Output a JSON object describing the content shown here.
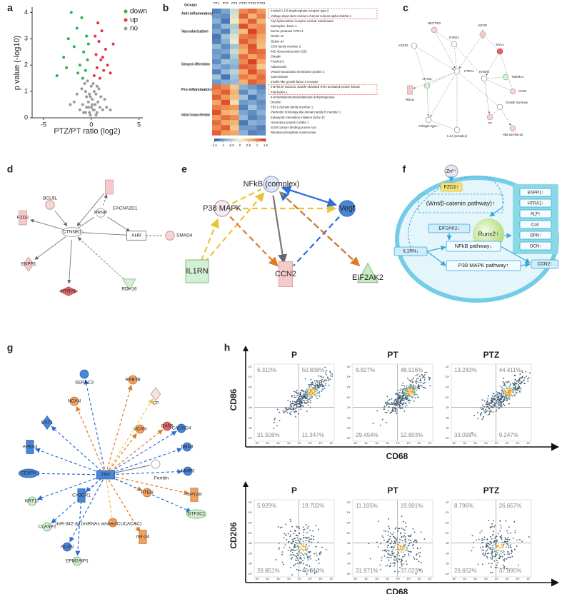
{
  "panel_labels": [
    "a",
    "b",
    "c",
    "d",
    "e",
    "f",
    "g",
    "h"
  ],
  "volcano": {
    "xlabel": "PTZ/PT ratio (log2)",
    "ylabel": "p value (-log10)",
    "xlim": [
      -6.2,
      5.4
    ],
    "ylim": [
      0,
      4.2
    ],
    "xticks": [
      -5,
      0,
      5
    ],
    "yticks": [
      0,
      1,
      2,
      3,
      4
    ],
    "series": [
      {
        "name": "down",
        "color": "#2db34a",
        "x": [
          -3.6,
          -2.9,
          -2.4,
          -2.1,
          -1.8,
          -1.5,
          -1.2,
          -1.0,
          -0.8,
          -0.6,
          -0.5,
          -0.4,
          -1.4,
          -0.9,
          -2.6,
          -0.3
        ],
        "y": [
          1.6,
          2.3,
          3.0,
          4.0,
          2.7,
          3.4,
          2.0,
          3.8,
          2.5,
          1.8,
          3.1,
          2.2,
          1.7,
          1.5,
          1.9,
          2.8
        ]
      },
      {
        "name": "up",
        "color": "#e8303a",
        "x": [
          0.3,
          0.5,
          0.6,
          0.8,
          1.0,
          1.1,
          1.3,
          1.5,
          1.7,
          2.0,
          2.3,
          0.4,
          0.9,
          1.2,
          0.7
        ],
        "y": [
          1.6,
          2.4,
          1.9,
          2.9,
          2.2,
          3.3,
          1.8,
          2.6,
          2.0,
          1.7,
          2.8,
          3.1,
          1.5,
          2.3,
          3.6
        ]
      },
      {
        "name": "no",
        "color": "#9a9a9a",
        "x": [
          -1.8,
          -1.5,
          -1.2,
          -1.0,
          -0.9,
          -0.7,
          -0.6,
          -0.5,
          -0.4,
          -0.3,
          -0.2,
          -0.1,
          0,
          0.1,
          0.2,
          0.3,
          0.4,
          0.5,
          0.6,
          0.7,
          0.8,
          0.9,
          1.0,
          1.2,
          1.4,
          1.6,
          -0.8,
          -0.3,
          0.2,
          0.5,
          -0.5,
          0.1,
          -0.2,
          0.3,
          -0.1,
          0.0,
          0.6,
          -0.6,
          2.0,
          -2.2
        ],
        "y": [
          0.6,
          0.9,
          0.3,
          1.1,
          0.5,
          1.3,
          0.2,
          0.8,
          1.4,
          0.4,
          0.9,
          0.1,
          1.2,
          0.7,
          0.3,
          1.0,
          0.5,
          0.9,
          0.2,
          0.6,
          1.1,
          0.4,
          0.8,
          0.3,
          0.7,
          0.4,
          0.2,
          0.6,
          1.3,
          0.1,
          0.4,
          0.5,
          0.2,
          0.3,
          0.8,
          0.4,
          1.2,
          1.0,
          0.3,
          0.5
        ]
      }
    ]
  },
  "heatmap": {
    "columns_title": "Groups",
    "columns": [
      "PT1",
      "PT2",
      "PT3",
      "PTZ1",
      "PTZ2",
      "PTZ3"
    ],
    "groups": [
      {
        "label": "Anti-inflammatory",
        "rows": [
          {
            "name": "Inositol 1,4,5-trisphosphate receptor type 2",
            "values": [
              -1.2,
              -0.9,
              -0.3,
              0.9,
              1.1,
              0.8
            ]
          },
          {
            "name": "Voltage-dependent calcium channel subunit alpha-2/delta-1",
            "values": [
              -1.0,
              -1.1,
              -0.2,
              1.2,
              0.6,
              1.0
            ]
          }
        ]
      },
      {
        "label": "Vascularization",
        "rows": [
          {
            "name": "Aryl hydrocarbon receptor nuclear translocator",
            "values": [
              -0.8,
              -1.3,
              0.1,
              0.7,
              1.2,
              0.6
            ]
          },
          {
            "name": "Syntrophin, basic 1",
            "values": [
              -1.1,
              -0.7,
              -0.5,
              1.3,
              0.8,
              0.9
            ]
          },
          {
            "name": "Serine protease HTRA1",
            "values": [
              -0.9,
              -1.2,
              -0.4,
              0.5,
              1.4,
              0.9
            ]
          },
          {
            "name": "Globin c2",
            "values": [
              -1.3,
              -0.6,
              -0.2,
              1.0,
              1.1,
              0.7
            ]
          },
          {
            "name": "Globin a4",
            "values": [
              -1.2,
              -0.8,
              -0.1,
              1.2,
              0.9,
              0.6
            ]
          }
        ]
      },
      {
        "label": "Osteogenic differentiation",
        "rows": [
          {
            "name": "CCN family member 2",
            "values": [
              -0.7,
              -1.1,
              -0.6,
              0.8,
              1.3,
              0.5
            ]
          },
          {
            "name": "40S ribosomal protein S29",
            "values": [
              -1.0,
              -0.9,
              -0.3,
              0.6,
              1.2,
              1.1
            ]
          },
          {
            "name": "Claudin",
            "values": [
              -0.9,
              -1.2,
              -0.5,
              1.1,
              0.7,
              1.0
            ]
          },
          {
            "name": "Frizzled-2",
            "values": [
              -1.1,
              -0.6,
              -0.7,
              0.9,
              1.4,
              0.7
            ]
          },
          {
            "name": "Adiponectin",
            "values": [
              -0.8,
              -1.0,
              -0.8,
              1.2,
              1.1,
              0.4
            ]
          },
          {
            "name": "Vesicle-associated membrane protein 3",
            "values": [
              -1.2,
              -0.7,
              -0.4,
              0.7,
              1.3,
              0.9
            ]
          },
          {
            "name": "Carnosinase",
            "values": [
              -0.6,
              -1.3,
              -0.6,
              1.0,
              0.8,
              1.1
            ]
          },
          {
            "name": "Insulin-like growth factor 2 receptor",
            "values": [
              -1.0,
              -0.8,
              -0.7,
              0.6,
              1.2,
              1.0
            ]
          }
        ]
      },
      {
        "label": "Pro-inflammatory",
        "rows": [
          {
            "name": "Interferon-induced, double-stranded RNA-activated protein kinase",
            "values": [
              1.1,
              0.9,
              0.4,
              -0.8,
              -1.0,
              -1.2
            ]
          },
          {
            "name": "Interleukin-1",
            "values": [
              0.9,
              1.2,
              0.6,
              -1.1,
              -0.7,
              -1.0
            ]
          }
        ]
      },
      {
        "label": "Inhibition of osteogenic differentiation",
        "rows": [
          {
            "name": "4-trimethylaminobutyraldehyde dehydrogenase",
            "values": [
              1.2,
              0.8,
              0.5,
              -0.6,
              -1.3,
              -0.9
            ]
          },
          {
            "name": "Desmin",
            "values": [
              0.7,
              1.3,
              0.2,
              -1.0,
              -0.9,
              -1.1
            ]
          },
          {
            "name": "TBC1 domain family member 1",
            "values": [
              1.0,
              0.9,
              0.8,
              -1.2,
              -0.6,
              -1.0
            ]
          },
          {
            "name": "Pleckstrin homology-like domain family B member 1",
            "values": [
              1.3,
              0.6,
              0.5,
              -0.9,
              -1.1,
              -0.8
            ]
          },
          {
            "name": "Eukaryotic translation initiation factor 4C",
            "values": [
              0.8,
              1.1,
              0.9,
              -0.7,
              -1.2,
              -1.0
            ]
          },
          {
            "name": "Homeobox protein cut-like 1",
            "values": [
              1.1,
              0.7,
              0.6,
              -1.3,
              -0.8,
              -0.9
            ]
          },
          {
            "name": "S100 calcium binding protein A16",
            "values": [
              0.9,
              1.2,
              0.4,
              -1.0,
              -1.0,
              -1.2
            ]
          },
          {
            "name": "Ribulose-phosphate 3-epimerase",
            "values": [
              1.2,
              0.8,
              0.7,
              -0.8,
              -1.2,
              -1.1
            ]
          }
        ]
      }
    ],
    "colorbar_ticks": [
      -1.5,
      -1,
      -0.5,
      0,
      0.5,
      1,
      1.5
    ]
  },
  "network_c": {
    "nodes": [
      "NECTIN3",
      "IGF2R",
      "DYRK2",
      "ASGR1",
      "MYL4",
      "HTRA1",
      "ACTN1",
      "CCN2",
      "FBLN1",
      "Growth hormone",
      "Collagen type I",
      "Hba-a1/Hba-a2",
      "IL12 (complex)",
      "CP",
      "RAB7B",
      "TMEM14"
    ]
  },
  "network_d": {
    "nodes": [
      "BCL9L",
      "CACNA2D1",
      "PRNP",
      "FZD2",
      "CTNNB1",
      "AHR",
      "SMAD4",
      "ENPP1",
      "HTRA1",
      "RDH16"
    ]
  },
  "network_e": {
    "nodes": [
      "NFkB (complex)",
      "P38 MAPK",
      "Vegf",
      "IL1RN",
      "CCN2",
      "EIF2AK2"
    ]
  },
  "diagram_f": {
    "zinc": "Zn²⁺",
    "fzd2": "FZD2↑",
    "wnt": "(Wnt/β-catenin pathway)↑",
    "eif2ak2": "EIF2AK2↓",
    "runx2": "Runx2↑",
    "nfkb": "NFkB pathway↓",
    "il1rn": "IL1RN↓",
    "p38": "P38 MAPK pathway↑",
    "ccn2": "CCN2↑",
    "markers": [
      "ENPP1↑",
      "HTRA1↑",
      "ALP↑",
      "Col↑",
      "OPN↑",
      "OCN↑"
    ]
  },
  "network_g": {
    "nodes": [
      "TNF",
      "SERAC3",
      "NCAN",
      "RAB7B",
      "CP",
      "GAS6",
      "EXT1",
      "VCAN",
      "CACNG4",
      "APBA3",
      "DBN3",
      "CEBPA",
      "MMP3",
      "KRT17",
      "PTEN",
      "NPY2R",
      "CLASP2",
      "CX3CR1",
      "GTF3C1",
      "ACAN",
      "miR-342-3p (miRNAs w/seed CUCACAC)",
      "mir-24",
      "Ferritin",
      "EPM2AIP1"
    ]
  },
  "flow": {
    "ticks": [
      "10⁰",
      "10¹",
      "10²",
      "10³",
      "10⁴",
      "10⁵",
      "10⁶",
      "10⁷"
    ],
    "rows": [
      {
        "y_label": "CD86",
        "x_label": "CD68",
        "plots": [
          {
            "title": "P",
            "quadrants": [
              "6.310%",
              "50.838%",
              "31.506%",
              "11.347%"
            ]
          },
          {
            "title": "PT",
            "quadrants": [
              "8.827%",
              "48.916%",
              "29.454%",
              "12.803%"
            ]
          },
          {
            "title": "PTZ",
            "quadrants": [
              "13.243%",
              "44.411%",
              "33.099%",
              "9.247%"
            ]
          }
        ]
      },
      {
        "y_label": "CD206",
        "x_label": "CD68",
        "plots": [
          {
            "title": "P",
            "quadrants": [
              "5.929%",
              "19.702%",
              "28.851%",
              "45.518%"
            ]
          },
          {
            "title": "PT",
            "quadrants": [
              "11.105%",
              "19.901%",
              "31.971%",
              "37.023%"
            ]
          },
          {
            "title": "PTZ",
            "quadrants": [
              "8.796%",
              "26.657%",
              "26.652%",
              "37.895%"
            ]
          }
        ]
      }
    ]
  }
}
